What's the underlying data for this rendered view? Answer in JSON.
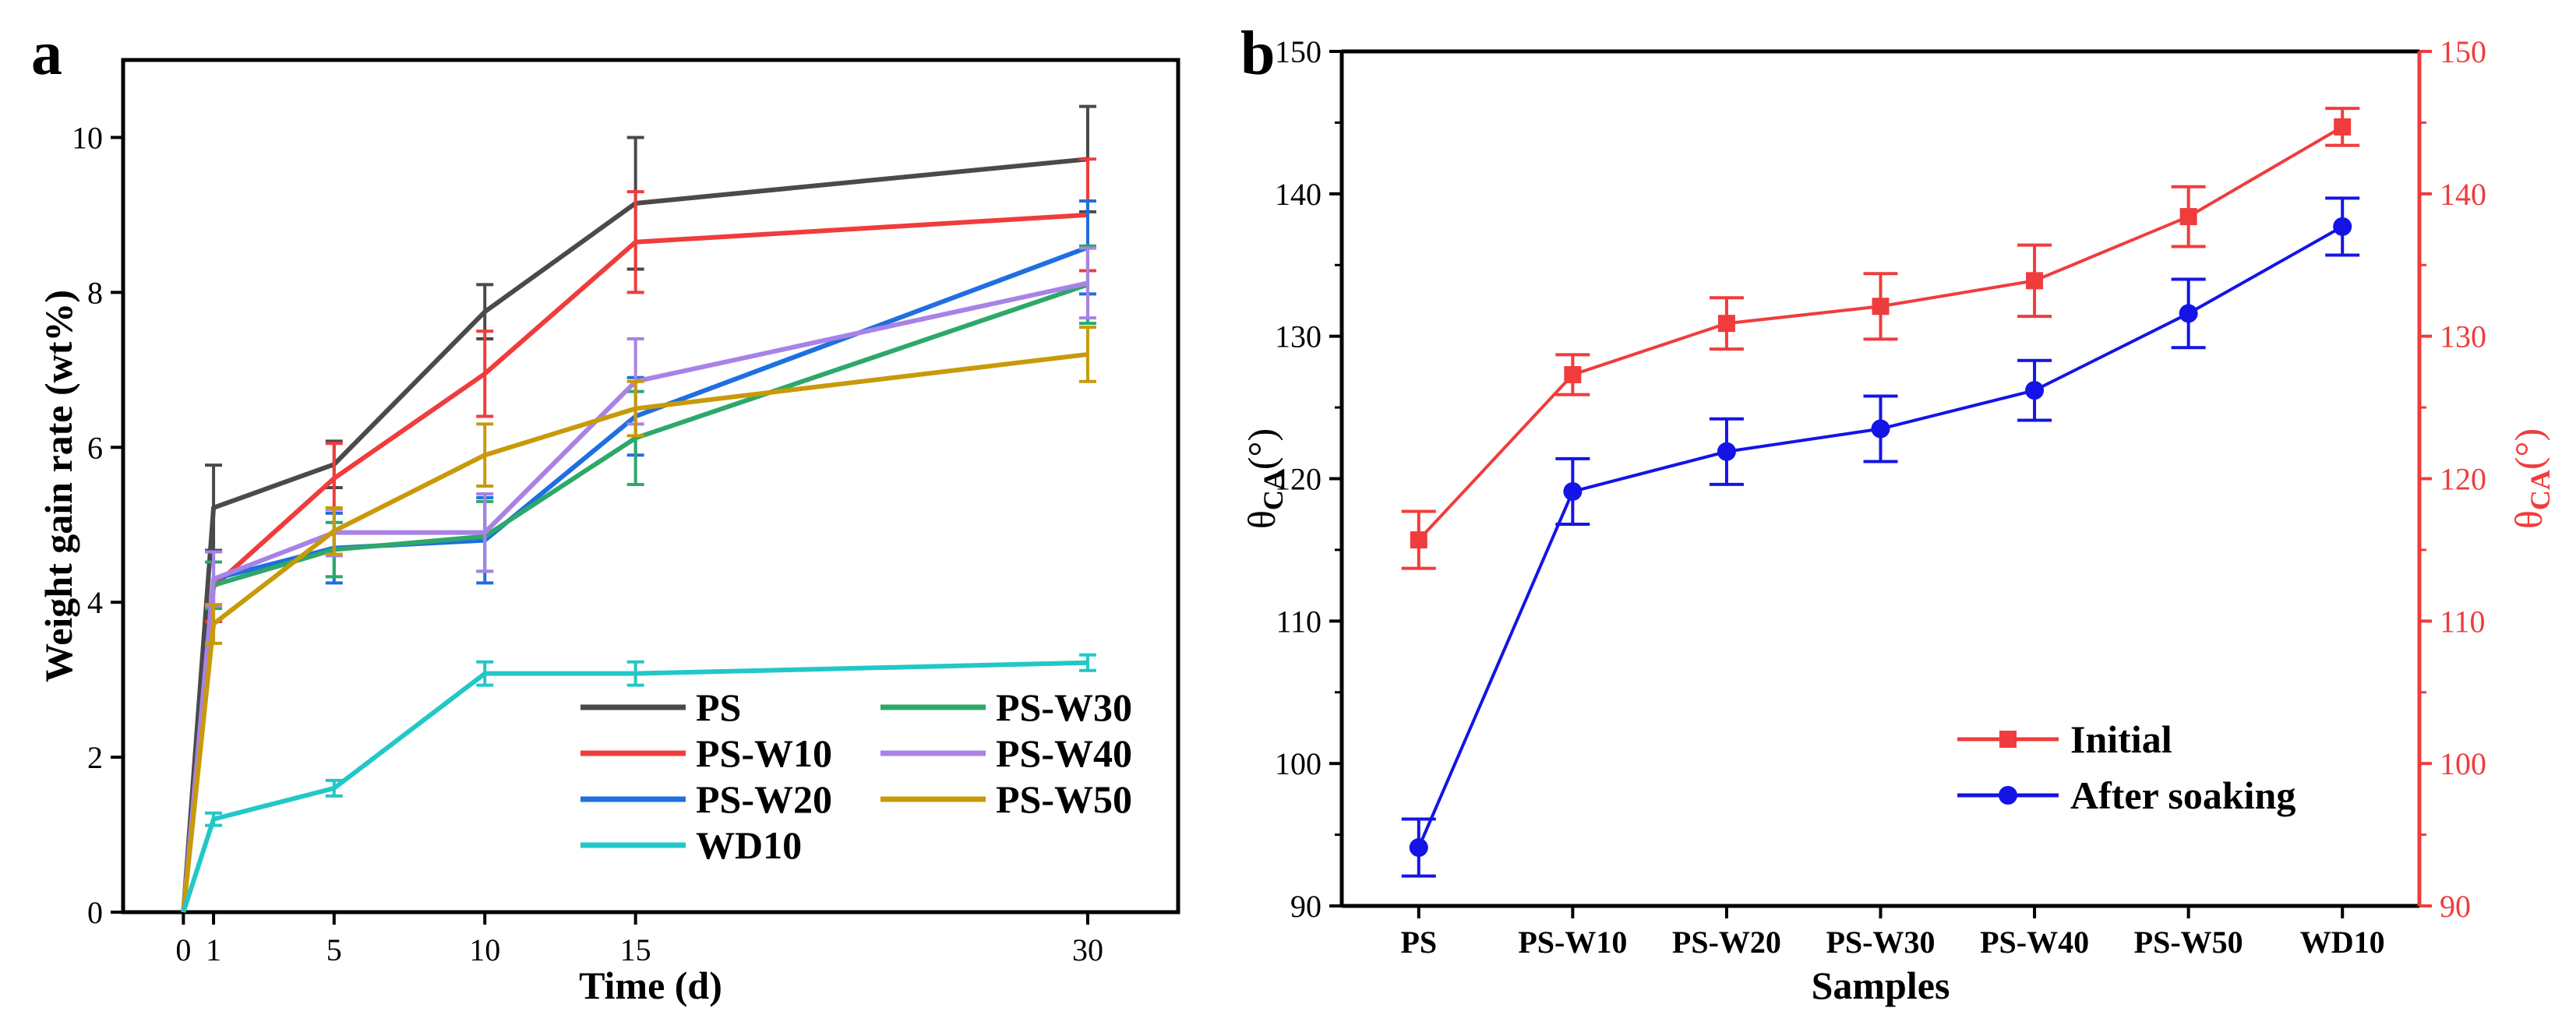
{
  "panel_a_letter": "a",
  "panel_b_letter": "b",
  "chart_data": [
    {
      "type": "line",
      "panel": "a",
      "title": "",
      "xlabel": "Time (d)",
      "ylabel": "Weight gain rate (wt%)",
      "xlim": [
        -2,
        33
      ],
      "ylim": [
        0,
        11
      ],
      "xticks": [
        0,
        1,
        5,
        10,
        15,
        30
      ],
      "yticks": [
        0,
        2,
        4,
        6,
        8,
        10
      ],
      "x": [
        0,
        1,
        5,
        10,
        15,
        30
      ],
      "grid": false,
      "legend_position": "bottom-right",
      "series": [
        {
          "name": "PS",
          "color": "#4a4a4a",
          "values": [
            0,
            5.22,
            5.78,
            7.75,
            9.15,
            9.72
          ],
          "errors": [
            0,
            0.55,
            0.3,
            0.35,
            0.85,
            0.68
          ]
        },
        {
          "name": "PS-W10",
          "color": "#f03c3c",
          "values": [
            0,
            4.2,
            5.6,
            6.95,
            8.65,
            9.0
          ],
          "errors": [
            0,
            0.45,
            0.45,
            0.55,
            0.65,
            0.72
          ]
        },
        {
          "name": "PS-W20",
          "color": "#1e6fe0",
          "values": [
            0,
            4.3,
            4.7,
            4.8,
            6.4,
            8.58
          ],
          "errors": [
            0,
            0.35,
            0.45,
            0.55,
            0.5,
            0.6
          ]
        },
        {
          "name": "PS-W30",
          "color": "#2ea86a",
          "values": [
            0,
            4.22,
            4.68,
            4.85,
            6.12,
            8.1
          ],
          "errors": [
            0,
            0.3,
            0.35,
            0.45,
            0.6,
            0.5
          ]
        },
        {
          "name": "PS-W40",
          "color": "#a882e6",
          "values": [
            0,
            4.3,
            4.9,
            4.9,
            6.85,
            8.12
          ],
          "errors": [
            0,
            0.35,
            0.3,
            0.5,
            0.55,
            0.45
          ]
        },
        {
          "name": "PS-W50",
          "color": "#c89a0a",
          "values": [
            0,
            3.72,
            4.92,
            5.9,
            6.5,
            7.2
          ],
          "errors": [
            0,
            0.25,
            0.3,
            0.4,
            0.35,
            0.35
          ]
        },
        {
          "name": "WD10",
          "color": "#22c7c7",
          "values": [
            0,
            1.2,
            1.6,
            3.08,
            3.08,
            3.22
          ],
          "errors": [
            0,
            0.08,
            0.1,
            0.15,
            0.15,
            0.1
          ]
        }
      ]
    },
    {
      "type": "line",
      "panel": "b",
      "title": "",
      "xlabel": "Samples",
      "ylabel_left": "θ",
      "ylabel_left_sub": "CA",
      "ylabel_left_suffix": "(°)",
      "ylabel_right": "θ",
      "ylabel_right_sub": "CA",
      "ylabel_right_suffix": "(°)",
      "ylim": [
        90,
        150
      ],
      "yticks": [
        90,
        100,
        110,
        120,
        130,
        140,
        150
      ],
      "categories": [
        "PS",
        "PS-W10",
        "PS-W20",
        "PS-W30",
        "PS-W40",
        "PS-W50",
        "WD10"
      ],
      "grid": false,
      "legend_position": "bottom-right",
      "left_axis_color": "#000000",
      "right_axis_color": "#f03c3c",
      "series": [
        {
          "name": "Initial",
          "color": "#f03c3c",
          "marker": "square",
          "values": [
            115.7,
            127.3,
            130.9,
            132.1,
            133.9,
            138.4,
            144.7
          ],
          "errors": [
            2.0,
            1.4,
            1.8,
            2.3,
            2.5,
            2.1,
            1.3
          ]
        },
        {
          "name": "After soaking",
          "color": "#1414e6",
          "marker": "circle",
          "values": [
            94.1,
            119.1,
            121.9,
            123.5,
            126.2,
            131.6,
            137.7
          ],
          "errors": [
            2.0,
            2.3,
            2.3,
            2.3,
            2.1,
            2.4,
            2.0
          ]
        }
      ]
    }
  ]
}
